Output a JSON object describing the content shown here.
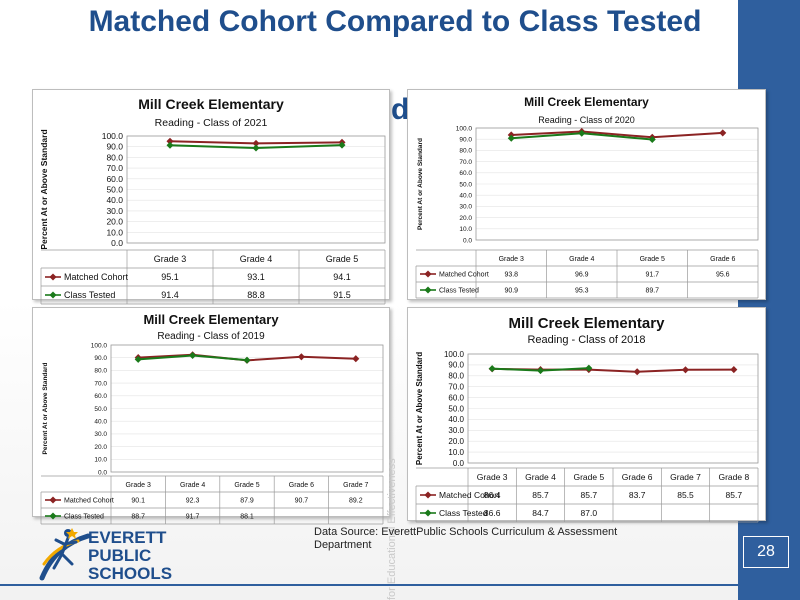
{
  "slide": {
    "title": "Matched Cohort Compared to Class Tested",
    "title_fragment": "d",
    "source_text": "Data Source: EverettPublic Schools Curriculum & Assessment Department",
    "page_number": "28",
    "watermark": "for Educational Effectiveness",
    "logo_text": [
      "EVERETT",
      "PUBLIC",
      "SCHOOLS"
    ]
  },
  "colors": {
    "matched": "#8b2323",
    "tested": "#1a7a1a",
    "title": "#1f4e8c",
    "accent": "#2f5f9e"
  },
  "chart_data": [
    {
      "type": "line",
      "title": "Mill Creek Elementary",
      "subtitle": "Reading - Class of 2021",
      "ylabel": "Percent At or Above Standard",
      "ylim": [
        0,
        100
      ],
      "yticks": [
        "100.0",
        "90.0",
        "80.0",
        "70.0",
        "60.0",
        "50.0",
        "40.0",
        "30.0",
        "20.0",
        "10.0",
        "0.0"
      ],
      "categories": [
        "Grade 3",
        "Grade 4",
        "Grade 5"
      ],
      "series": [
        {
          "name": "Matched Cohort",
          "values": [
            95.1,
            93.1,
            94.1
          ],
          "labels": [
            "95.1",
            "93.1",
            "94.1"
          ]
        },
        {
          "name": "Class Tested",
          "values": [
            91.4,
            88.8,
            91.5
          ],
          "labels": [
            "91.4",
            "88.8",
            "91.5"
          ]
        }
      ]
    },
    {
      "type": "line",
      "title": "Mill Creek Elementary",
      "subtitle": "Reading - Class of 2020",
      "ylabel": "Percent At or Above Standard",
      "ylim": [
        0,
        100
      ],
      "yticks": [
        "100.0",
        "90.0",
        "80.0",
        "70.0",
        "60.0",
        "50.0",
        "40.0",
        "30.0",
        "20.0",
        "10.0",
        "0.0"
      ],
      "categories": [
        "Grade 3",
        "Grade 4",
        "Grade 5",
        "Grade 6"
      ],
      "series": [
        {
          "name": "Matched Cohort",
          "values": [
            93.8,
            96.9,
            91.7,
            95.6
          ],
          "labels": [
            "93.8",
            "96.9",
            "91.7",
            "95.6"
          ]
        },
        {
          "name": "Class Tested",
          "values": [
            90.9,
            95.3,
            89.7,
            null
          ],
          "labels": [
            "90.9",
            "95.3",
            "89.7",
            ""
          ]
        }
      ]
    },
    {
      "type": "line",
      "title": "Mill Creek Elementary",
      "subtitle": "Reading - Class of 2019",
      "ylabel": "Percent At or Above Standard",
      "ylim": [
        0,
        100
      ],
      "yticks": [
        "100.0",
        "90.0",
        "80.0",
        "70.0",
        "60.0",
        "50.0",
        "40.0",
        "30.0",
        "20.0",
        "10.0",
        "0.0"
      ],
      "categories": [
        "Grade 3",
        "Grade 4",
        "Grade 5",
        "Grade 6",
        "Grade 7"
      ],
      "series": [
        {
          "name": "Matched Cohort",
          "values": [
            90.1,
            92.3,
            87.9,
            90.7,
            89.2
          ],
          "labels": [
            "90.1",
            "92.3",
            "87.9",
            "90.7",
            "89.2"
          ]
        },
        {
          "name": "Class Tested",
          "values": [
            88.7,
            91.7,
            88.1,
            null,
            null
          ],
          "labels": [
            "88.7",
            "91.7",
            "88.1",
            "",
            ""
          ]
        }
      ]
    },
    {
      "type": "line",
      "title": "Mill Creek Elementary",
      "subtitle": "Reading - Class of 2018",
      "ylabel": "Percent At or Above Standard",
      "ylim": [
        0,
        100
      ],
      "yticks": [
        "100.0",
        "90.0",
        "80.0",
        "70.0",
        "60.0",
        "50.0",
        "40.0",
        "30.0",
        "20.0",
        "10.0",
        "0.0"
      ],
      "categories": [
        "Grade 3",
        "Grade 4",
        "Grade 5",
        "Grade 6",
        "Grade 7",
        "Grade 8"
      ],
      "series": [
        {
          "name": "Matched Cohort",
          "values": [
            86.4,
            85.7,
            85.7,
            83.7,
            85.5,
            85.7
          ],
          "labels": [
            "86.4",
            "85.7",
            "85.7",
            "83.7",
            "85.5",
            "85.7"
          ]
        },
        {
          "name": "Class Tested",
          "values": [
            86.6,
            84.7,
            87.0,
            null,
            null,
            null
          ],
          "labels": [
            "86.6",
            "84.7",
            "87.0",
            "",
            "",
            ""
          ]
        }
      ]
    }
  ]
}
